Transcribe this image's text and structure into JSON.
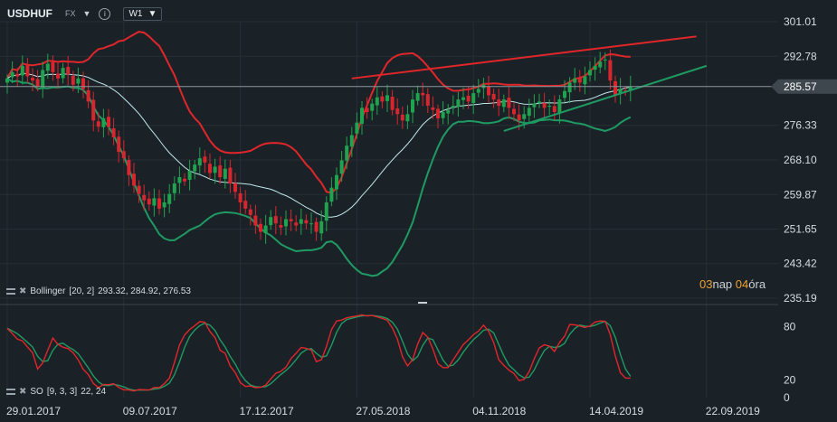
{
  "toolbar": {
    "symbol": "USDHUF",
    "market": "FX",
    "timeframe": "W1"
  },
  "colors": {
    "background": "#1b2227",
    "bull": "#1fa34f",
    "bear": "#d8262e",
    "band_upper": "#e0262a",
    "band_lower": "#1f9a63",
    "band_mid": "#bfe8ea",
    "price_line": "#8a949a",
    "price_tag": "#3d474d"
  },
  "indicators": {
    "bollinger": {
      "name": "Bollinger",
      "params": "[20,  2]",
      "values": "293.32,   284.92,   276.53"
    },
    "so": {
      "name": "SO",
      "params": "[9,  3,  3]",
      "values": "22,  24"
    }
  },
  "countdown": {
    "days": "03",
    "days_unit": "nap",
    "hours": "04",
    "hours_unit": "óra"
  },
  "chart_data": [
    {
      "type": "candlestick",
      "price_label": "285.57",
      "last_price": 285.57,
      "y_ticks": [
        "301.01",
        "292.78",
        "285.57",
        "276.33",
        "268.10",
        "259.87",
        "251.65",
        "243.42",
        "235.19"
      ],
      "ylim": [
        235.19,
        301.01
      ],
      "x_ticks": [
        "29.01.2017",
        "09.07.2017",
        "17.12.2017",
        "27.05.2018",
        "04.11.2018",
        "14.04.2019",
        "22.09.2019"
      ],
      "x_tick_index": [
        0,
        23,
        46,
        69,
        92,
        115,
        138
      ],
      "closes": [
        287.5,
        289.0,
        288.0,
        290.5,
        288.0,
        287.0,
        285.5,
        289.5,
        291.0,
        289.0,
        287.5,
        290.0,
        288.5,
        286.0,
        287.5,
        285.0,
        282.0,
        277.5,
        276.0,
        278.0,
        276.0,
        273.5,
        270.0,
        268.5,
        264.5,
        262.0,
        260.0,
        258.5,
        257.5,
        259.0,
        256.5,
        258.0,
        260.0,
        262.5,
        264.0,
        263.0,
        265.5,
        267.0,
        268.5,
        267.5,
        265.0,
        266.5,
        264.0,
        266.0,
        262.5,
        260.5,
        258.0,
        256.5,
        255.0,
        252.5,
        251.0,
        252.5,
        254.5,
        253.0,
        252.0,
        254.0,
        253.5,
        252.5,
        254.0,
        253.0,
        253.0,
        251.0,
        253.5,
        258.0,
        261.5,
        264.5,
        268.0,
        271.5,
        274.0,
        277.0,
        280.5,
        279.5,
        281.5,
        283.0,
        282.0,
        283.5,
        280.0,
        279.0,
        277.5,
        279.0,
        282.5,
        284.0,
        283.5,
        281.0,
        280.0,
        278.0,
        279.5,
        280.0,
        281.0,
        282.5,
        283.0,
        282.0,
        284.0,
        285.0,
        286.0,
        283.5,
        282.5,
        281.0,
        282.5,
        280.5,
        279.0,
        277.5,
        279.0,
        280.5,
        281.5,
        282.0,
        280.5,
        281.0,
        279.5,
        282.5,
        284.5,
        286.5,
        287.5,
        286.5,
        288.0,
        289.5,
        290.5,
        291.5,
        292.0,
        287.0,
        283.5,
        285.0,
        284.5,
        285.57
      ],
      "series": [
        {
          "name": "Bollinger upper"
        },
        {
          "name": "Bollinger middle"
        },
        {
          "name": "Bollinger lower"
        }
      ],
      "trend_lines": [
        {
          "color": "red",
          "from": {
            "i": 68,
            "p": 287.5
          },
          "to": {
            "i": 136,
            "p": 297.5
          }
        },
        {
          "color": "green",
          "from": {
            "i": 98,
            "p": 275.0
          },
          "to": {
            "i": 138,
            "p": 290.5
          }
        }
      ]
    },
    {
      "type": "line",
      "y_ticks": [
        "80",
        "20",
        "0"
      ],
      "ylim": [
        0,
        100
      ],
      "series": [
        {
          "name": "%K"
        },
        {
          "name": "%D"
        }
      ],
      "last_k": 22,
      "last_d": 24
    }
  ]
}
